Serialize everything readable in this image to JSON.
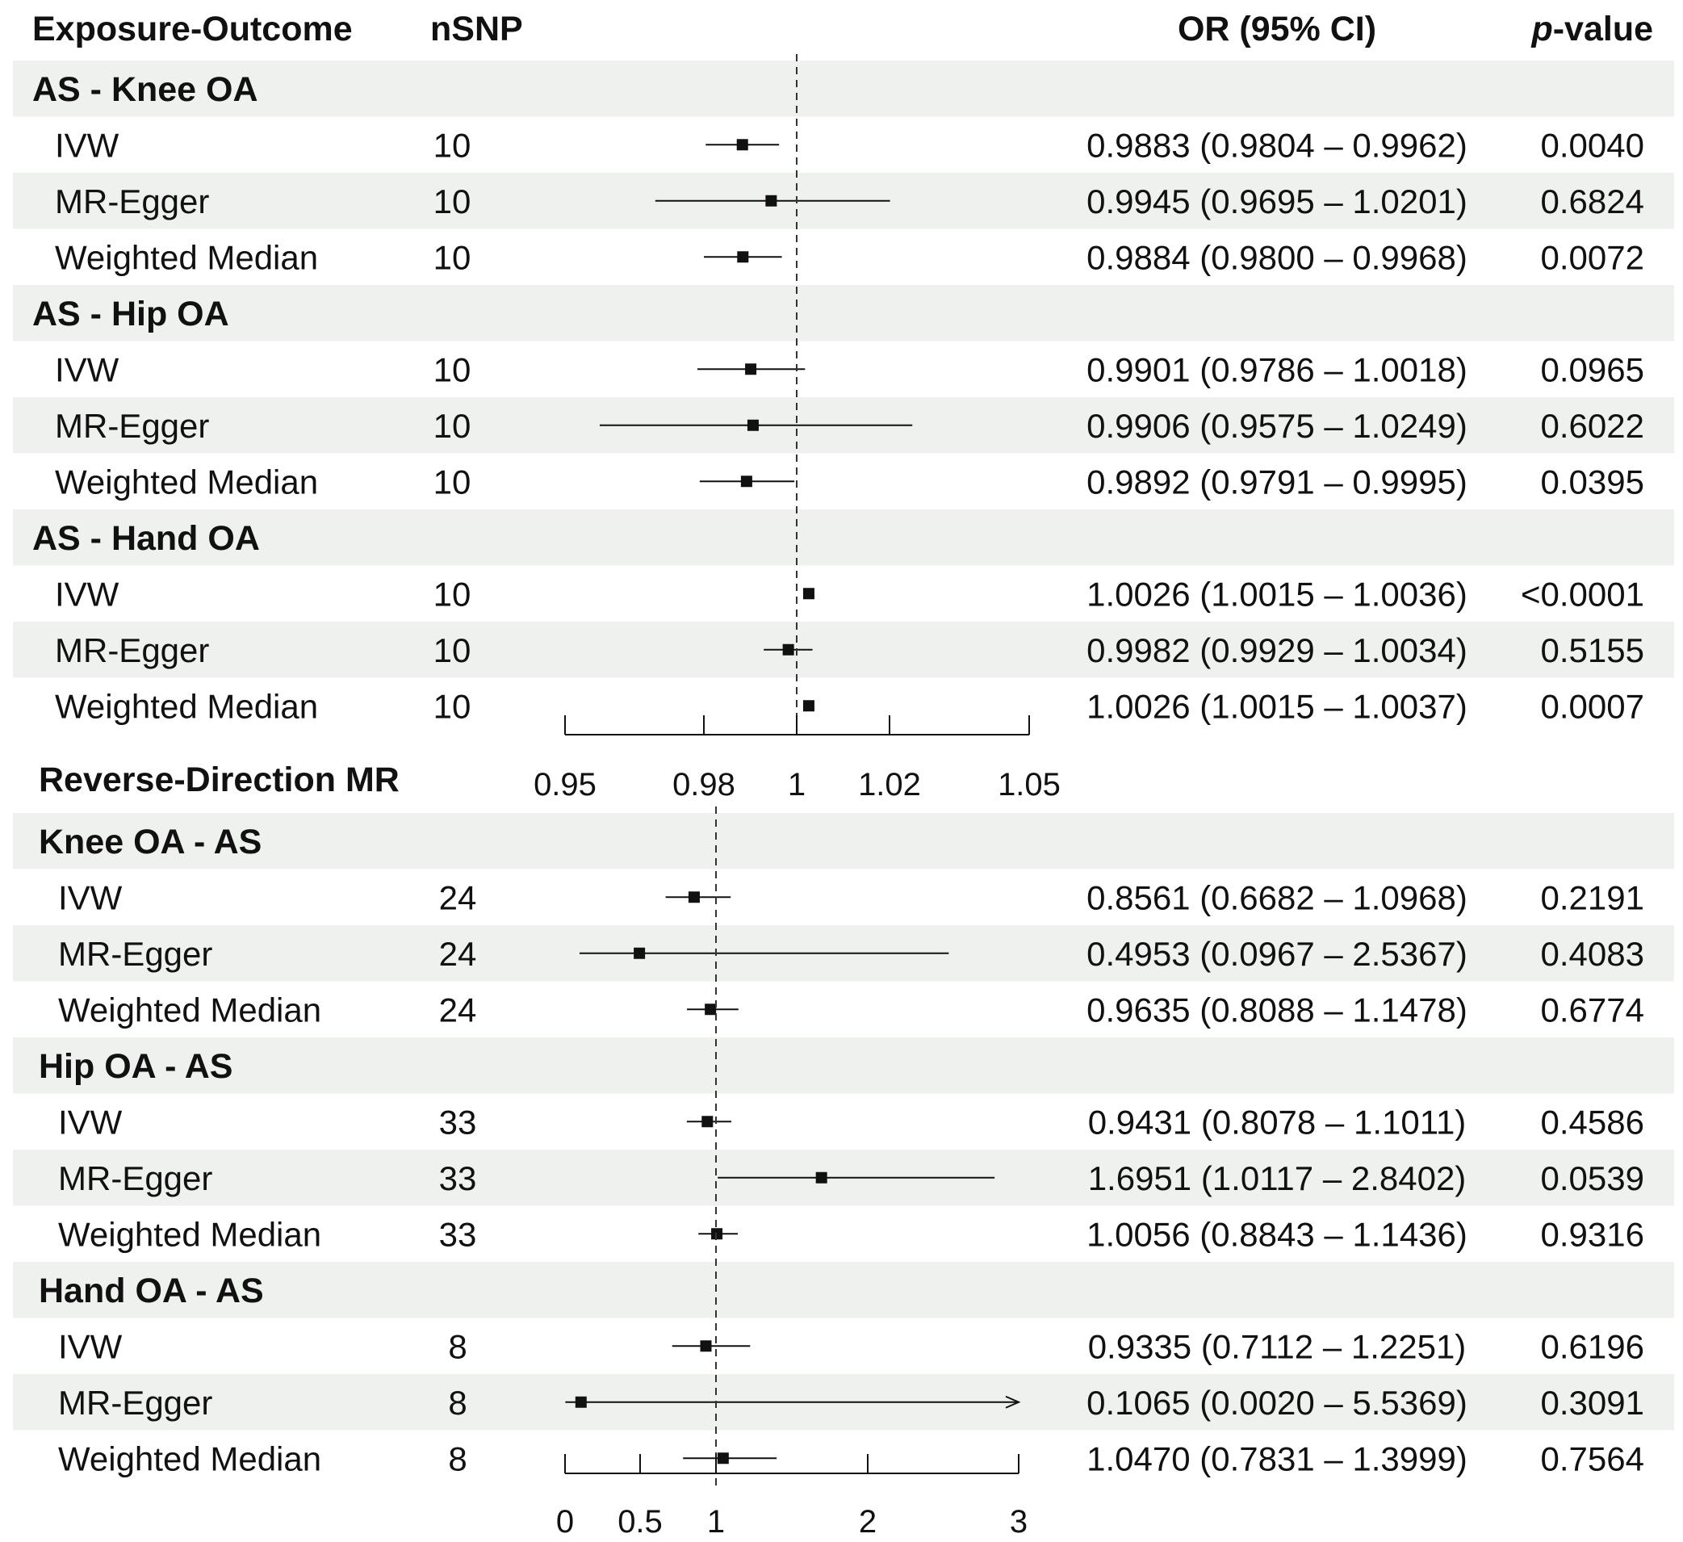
{
  "header": {
    "exposure_outcome": "Exposure-Outcome",
    "nsnp": "nSNP",
    "or_ci": "OR (95% CI)",
    "p_italic": "p",
    "p_rest": "-value"
  },
  "chart_data": [
    {
      "type": "forest",
      "title": "",
      "xlabel": "",
      "reference_line": 1,
      "xlim": [
        0.95,
        1.05
      ],
      "ticks": [
        0.95,
        0.98,
        1,
        1.02,
        1.05
      ],
      "tick_labels": [
        "0.95",
        "0.98",
        "1",
        "1.02",
        "1.05"
      ],
      "groups": [
        {
          "name": "AS - Knee OA",
          "rows": [
            {
              "method": "IVW",
              "nsnp": "10",
              "or": 0.9883,
              "lo": 0.9804,
              "hi": 0.9962,
              "or_ci": "0.9883 (0.9804 – 0.9962)",
              "p": "0.0040"
            },
            {
              "method": "MR-Egger",
              "nsnp": "10",
              "or": 0.9945,
              "lo": 0.9695,
              "hi": 1.0201,
              "or_ci": "0.9945 (0.9695 – 1.0201)",
              "p": "0.6824"
            },
            {
              "method": "Weighted Median",
              "nsnp": "10",
              "or": 0.9884,
              "lo": 0.98,
              "hi": 0.9968,
              "or_ci": "0.9884 (0.9800 – 0.9968)",
              "p": "0.0072"
            }
          ]
        },
        {
          "name": "AS - Hip OA",
          "rows": [
            {
              "method": "IVW",
              "nsnp": "10",
              "or": 0.9901,
              "lo": 0.9786,
              "hi": 1.0018,
              "or_ci": "0.9901 (0.9786 – 1.0018)",
              "p": "0.0965"
            },
            {
              "method": "MR-Egger",
              "nsnp": "10",
              "or": 0.9906,
              "lo": 0.9575,
              "hi": 1.0249,
              "or_ci": "0.9906 (0.9575 – 1.0249)",
              "p": "0.6022"
            },
            {
              "method": "Weighted Median",
              "nsnp": "10",
              "or": 0.9892,
              "lo": 0.9791,
              "hi": 0.9995,
              "or_ci": "0.9892 (0.9791 – 0.9995)",
              "p": "0.0395"
            }
          ]
        },
        {
          "name": "AS - Hand OA",
          "rows": [
            {
              "method": "IVW",
              "nsnp": "10",
              "or": 1.0026,
              "lo": 1.0015,
              "hi": 1.0036,
              "or_ci": "1.0026 (1.0015 – 1.0036)",
              "p": "<0.0001"
            },
            {
              "method": "MR-Egger",
              "nsnp": "10",
              "or": 0.9982,
              "lo": 0.9929,
              "hi": 1.0034,
              "or_ci": "0.9982 (0.9929 – 1.0034)",
              "p": "0.5155"
            },
            {
              "method": "Weighted Median",
              "nsnp": "10",
              "or": 1.0026,
              "lo": 1.0015,
              "hi": 1.0037,
              "or_ci": "1.0026 (1.0015 – 1.0037)",
              "p": "0.0007"
            }
          ]
        }
      ]
    },
    {
      "type": "forest",
      "title": "Reverse-Direction MR",
      "xlabel": "",
      "reference_line": 1,
      "xlim": [
        0,
        3
      ],
      "ticks": [
        0,
        0.5,
        1,
        2,
        3
      ],
      "tick_labels": [
        "0",
        "0.5",
        "1",
        "2",
        "3"
      ],
      "groups": [
        {
          "name": "Knee OA - AS",
          "rows": [
            {
              "method": "IVW",
              "nsnp": "24",
              "or": 0.8561,
              "lo": 0.6682,
              "hi": 1.0968,
              "or_ci": "0.8561 (0.6682 – 1.0968)",
              "p": "0.2191"
            },
            {
              "method": "MR-Egger",
              "nsnp": "24",
              "or": 0.4953,
              "lo": 0.0967,
              "hi": 2.5367,
              "or_ci": "0.4953 (0.0967 – 2.5367)",
              "p": "0.4083"
            },
            {
              "method": "Weighted Median",
              "nsnp": "24",
              "or": 0.9635,
              "lo": 0.8088,
              "hi": 1.1478,
              "or_ci": "0.9635 (0.8088 – 1.1478)",
              "p": "0.6774"
            }
          ]
        },
        {
          "name": "Hip OA - AS",
          "rows": [
            {
              "method": "IVW",
              "nsnp": "33",
              "or": 0.9431,
              "lo": 0.8078,
              "hi": 1.1011,
              "or_ci": "0.9431 (0.8078 – 1.1011)",
              "p": "0.4586"
            },
            {
              "method": "MR-Egger",
              "nsnp": "33",
              "or": 1.6951,
              "lo": 1.0117,
              "hi": 2.8402,
              "or_ci": "1.6951 (1.0117 – 2.8402)",
              "p": "0.0539"
            },
            {
              "method": "Weighted Median",
              "nsnp": "33",
              "or": 1.0056,
              "lo": 0.8843,
              "hi": 1.1436,
              "or_ci": "1.0056 (0.8843 – 1.1436)",
              "p": "0.9316"
            }
          ]
        },
        {
          "name": "Hand OA - AS",
          "rows": [
            {
              "method": "IVW",
              "nsnp": "8",
              "or": 0.9335,
              "lo": 0.7112,
              "hi": 1.2251,
              "or_ci": "0.9335 (0.7112 – 1.2251)",
              "p": "0.6196"
            },
            {
              "method": "MR-Egger",
              "nsnp": "8",
              "or": 0.1065,
              "lo": 0.002,
              "hi": 5.5369,
              "or_ci": "0.1065 (0.0020 – 5.5369)",
              "p": "0.3091",
              "truncated_arrow": true
            },
            {
              "method": "Weighted Median",
              "nsnp": "8",
              "or": 1.047,
              "lo": 0.7831,
              "hi": 1.3999,
              "or_ci": "1.0470 (0.7831 – 1.3999)",
              "p": "0.7564"
            }
          ]
        }
      ]
    }
  ]
}
